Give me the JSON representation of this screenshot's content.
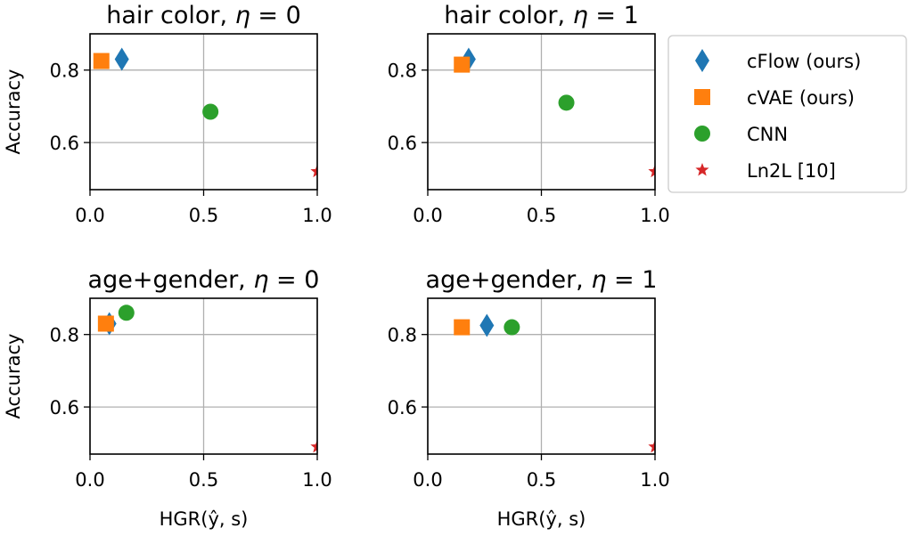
{
  "chart_data": [
    {
      "type": "scatter",
      "title": "hair color, η = 0",
      "title_prefix": "hair color, ",
      "title_eta": "η",
      "title_suffix": " = 0",
      "ylabel": "Accuracy",
      "xlabel": "",
      "xlim": [
        0.0,
        1.0
      ],
      "ylim": [
        0.47,
        0.9
      ],
      "xticks": [
        "0.0",
        "0.5",
        "1.0"
      ],
      "yticks": [
        "0.6",
        "0.8"
      ],
      "grid": true,
      "points": [
        {
          "series": "cFlow (ours)",
          "x": 0.14,
          "y": 0.83
        },
        {
          "series": "cVAE (ours)",
          "x": 0.05,
          "y": 0.825
        },
        {
          "series": "CNN",
          "x": 0.53,
          "y": 0.685
        },
        {
          "series": "Ln2L [10]",
          "x": 1.0,
          "y": 0.52
        }
      ]
    },
    {
      "type": "scatter",
      "title": "hair color, η = 1",
      "title_prefix": "hair color, ",
      "title_eta": "η",
      "title_suffix": " = 1",
      "ylabel": "",
      "xlabel": "",
      "xlim": [
        0.0,
        1.0
      ],
      "ylim": [
        0.47,
        0.9
      ],
      "xticks": [
        "0.0",
        "0.5",
        "1.0"
      ],
      "yticks": [
        "0.6",
        "0.8"
      ],
      "grid": true,
      "points": [
        {
          "series": "cFlow (ours)",
          "x": 0.18,
          "y": 0.83
        },
        {
          "series": "cVAE (ours)",
          "x": 0.15,
          "y": 0.815
        },
        {
          "series": "CNN",
          "x": 0.61,
          "y": 0.71
        },
        {
          "series": "Ln2L [10]",
          "x": 1.0,
          "y": 0.52
        }
      ]
    },
    {
      "type": "scatter",
      "title": "age+gender, η = 0",
      "title_prefix": "age+gender, ",
      "title_eta": "η",
      "title_suffix": " = 0",
      "ylabel": "Accuracy",
      "xlabel": "HGR(ŷ, s)",
      "xlim": [
        0.0,
        1.0
      ],
      "ylim": [
        0.47,
        0.9
      ],
      "xticks": [
        "0.0",
        "0.5",
        "1.0"
      ],
      "yticks": [
        "0.6",
        "0.8"
      ],
      "grid": true,
      "points": [
        {
          "series": "cFlow (ours)",
          "x": 0.085,
          "y": 0.83
        },
        {
          "series": "cVAE (ours)",
          "x": 0.07,
          "y": 0.83
        },
        {
          "series": "CNN",
          "x": 0.16,
          "y": 0.86
        },
        {
          "series": "Ln2L [10]",
          "x": 1.0,
          "y": 0.49
        }
      ]
    },
    {
      "type": "scatter",
      "title": "age+gender, η = 1",
      "title_prefix": "age+gender, ",
      "title_eta": "η",
      "title_suffix": " = 1",
      "ylabel": "",
      "xlabel": "HGR(ŷ, s)",
      "xlim": [
        0.0,
        1.0
      ],
      "ylim": [
        0.47,
        0.9
      ],
      "xticks": [
        "0.0",
        "0.5",
        "1.0"
      ],
      "yticks": [
        "0.6",
        "0.8"
      ],
      "grid": true,
      "points": [
        {
          "series": "cFlow (ours)",
          "x": 0.26,
          "y": 0.825
        },
        {
          "series": "cVAE (ours)",
          "x": 0.15,
          "y": 0.82
        },
        {
          "series": "CNN",
          "x": 0.37,
          "y": 0.82
        },
        {
          "series": "Ln2L [10]",
          "x": 1.0,
          "y": 0.49
        }
      ]
    }
  ],
  "legend": {
    "placement": "right",
    "entries": [
      {
        "label": "cFlow (ours)",
        "marker": "diamond",
        "color": "#1f77b4"
      },
      {
        "label": "cVAE (ours)",
        "marker": "square",
        "color": "#ff7f0e"
      },
      {
        "label": "CNN",
        "marker": "circle",
        "color": "#2ca02c"
      },
      {
        "label": "Ln2L [10]",
        "marker": "star",
        "color": "#d62728"
      }
    ]
  },
  "colors": {
    "grid": "#b0b0b0",
    "axes": "#000000"
  }
}
